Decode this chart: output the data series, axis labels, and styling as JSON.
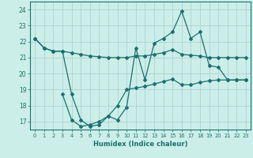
{
  "xlabel": "Humidex (Indice chaleur)",
  "bg_color": "#cceee8",
  "grid_color": "#aacccc",
  "line_color": "#1a7070",
  "spine_color": "#1a7070",
  "xlim": [
    -0.5,
    23.5
  ],
  "ylim": [
    16.5,
    24.5
  ],
  "yticks": [
    17,
    18,
    19,
    20,
    21,
    22,
    23,
    24
  ],
  "xticks": [
    0,
    1,
    2,
    3,
    4,
    5,
    6,
    7,
    8,
    9,
    10,
    11,
    12,
    13,
    14,
    15,
    16,
    17,
    18,
    19,
    20,
    21,
    22,
    23
  ],
  "line1_x": [
    0,
    1,
    2,
    3,
    4,
    5,
    6,
    7,
    8,
    9,
    10,
    11,
    12,
    13,
    14,
    15,
    16,
    17,
    18,
    19,
    20,
    21,
    22,
    23
  ],
  "line1_y": [
    22.2,
    21.6,
    21.4,
    21.4,
    21.3,
    21.2,
    21.1,
    21.05,
    21.0,
    21.0,
    21.0,
    21.1,
    21.1,
    21.2,
    21.3,
    21.5,
    21.2,
    21.15,
    21.1,
    21.0,
    21.0,
    21.0,
    21.0,
    21.0
  ],
  "line2_x": [
    0,
    1,
    2,
    3,
    4,
    5,
    6,
    7,
    8,
    9,
    10,
    11,
    12,
    13,
    14,
    15,
    16,
    17,
    18,
    19,
    20,
    21,
    22,
    23
  ],
  "line2_y": [
    22.2,
    21.6,
    21.4,
    21.4,
    18.7,
    17.1,
    16.7,
    16.8,
    17.35,
    17.1,
    17.9,
    21.6,
    19.6,
    21.9,
    22.2,
    22.6,
    23.9,
    22.2,
    22.6,
    20.5,
    20.4,
    19.6,
    19.6,
    19.6
  ],
  "line3_x": [
    3,
    4,
    5,
    6,
    7,
    8,
    9,
    10,
    11,
    12,
    13,
    14,
    15,
    16,
    17,
    18,
    19,
    20,
    21,
    22,
    23
  ],
  "line3_y": [
    18.7,
    17.1,
    16.7,
    16.8,
    17.0,
    17.35,
    18.0,
    19.0,
    19.1,
    19.2,
    19.35,
    19.5,
    19.65,
    19.3,
    19.3,
    19.45,
    19.55,
    19.6,
    19.6,
    19.6,
    19.6
  ]
}
